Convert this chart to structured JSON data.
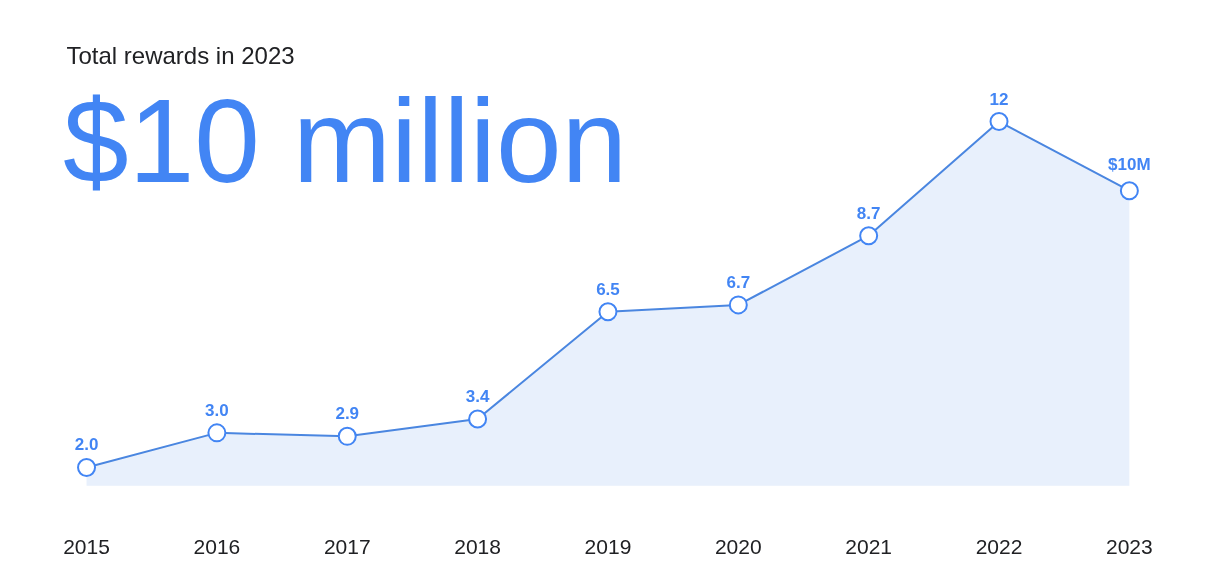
{
  "chart_data": {
    "type": "area",
    "title": "Total rewards in 2023",
    "subtitle": "$10 million",
    "categories": [
      "2015",
      "2016",
      "2017",
      "2018",
      "2019",
      "2020",
      "2021",
      "2022",
      "2023"
    ],
    "series": [
      {
        "color": "#4a86e0",
        "values": [
          2.0,
          3.0,
          2.9,
          3.4,
          6.5,
          6.7,
          8.7,
          12,
          10
        ],
        "value_labels": [
          "2.0",
          "3.0",
          "2.9",
          "3.4",
          "6.5",
          "6.7",
          "8.7",
          "12",
          "$10M"
        ]
      }
    ],
    "marker": "circle",
    "grid": false
  }
}
